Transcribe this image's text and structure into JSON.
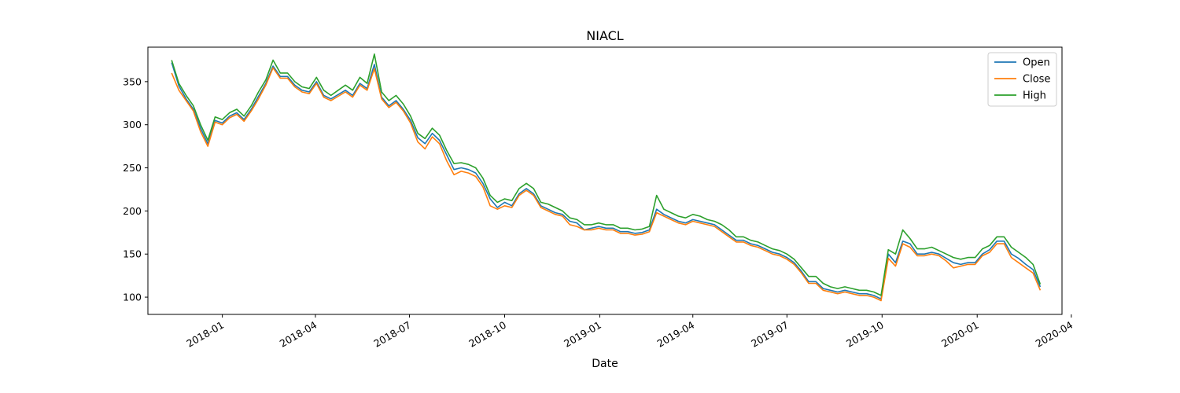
{
  "chart_data": {
    "type": "line",
    "title": "NIACL",
    "xlabel": "Date",
    "ylabel": "",
    "ylim": [
      80,
      390
    ],
    "xlim": [
      "2017-10-21",
      "2020-03-23"
    ],
    "x_ticks": [
      "2018-01",
      "2018-04",
      "2018-07",
      "2018-10",
      "2019-01",
      "2019-04",
      "2019-07",
      "2019-10",
      "2020-01",
      "2020-04"
    ],
    "y_ticks": [
      100,
      150,
      200,
      250,
      300,
      350
    ],
    "grid": false,
    "legend_position": "top-right",
    "x": [
      "2017-11-13",
      "2017-11-20",
      "2017-11-27",
      "2017-12-04",
      "2017-12-11",
      "2017-12-18",
      "2017-12-25",
      "2018-01-01",
      "2018-01-08",
      "2018-01-15",
      "2018-01-22",
      "2018-01-29",
      "2018-02-05",
      "2018-02-12",
      "2018-02-19",
      "2018-02-26",
      "2018-03-05",
      "2018-03-12",
      "2018-03-19",
      "2018-03-26",
      "2018-04-02",
      "2018-04-09",
      "2018-04-16",
      "2018-04-23",
      "2018-04-30",
      "2018-05-07",
      "2018-05-14",
      "2018-05-21",
      "2018-05-28",
      "2018-06-04",
      "2018-06-11",
      "2018-06-18",
      "2018-06-25",
      "2018-07-02",
      "2018-07-09",
      "2018-07-16",
      "2018-07-23",
      "2018-07-30",
      "2018-08-06",
      "2018-08-13",
      "2018-08-20",
      "2018-08-27",
      "2018-09-03",
      "2018-09-10",
      "2018-09-17",
      "2018-09-24",
      "2018-10-01",
      "2018-10-08",
      "2018-10-15",
      "2018-10-22",
      "2018-10-29",
      "2018-11-05",
      "2018-11-12",
      "2018-11-19",
      "2018-11-26",
      "2018-12-03",
      "2018-12-10",
      "2018-12-17",
      "2018-12-24",
      "2018-12-31",
      "2019-01-07",
      "2019-01-14",
      "2019-01-21",
      "2019-01-28",
      "2019-02-04",
      "2019-02-11",
      "2019-02-18",
      "2019-02-25",
      "2019-03-04",
      "2019-03-11",
      "2019-03-18",
      "2019-03-25",
      "2019-04-01",
      "2019-04-08",
      "2019-04-15",
      "2019-04-22",
      "2019-04-29",
      "2019-05-06",
      "2019-05-13",
      "2019-05-20",
      "2019-05-27",
      "2019-06-03",
      "2019-06-10",
      "2019-06-17",
      "2019-06-24",
      "2019-07-01",
      "2019-07-08",
      "2019-07-15",
      "2019-07-22",
      "2019-07-29",
      "2019-08-05",
      "2019-08-12",
      "2019-08-19",
      "2019-08-26",
      "2019-09-02",
      "2019-09-09",
      "2019-09-16",
      "2019-09-23",
      "2019-09-30",
      "2019-10-07",
      "2019-10-14",
      "2019-10-21",
      "2019-10-28",
      "2019-11-04",
      "2019-11-11",
      "2019-11-18",
      "2019-11-25",
      "2019-12-02",
      "2019-12-09",
      "2019-12-16",
      "2019-12-23",
      "2019-12-30",
      "2020-01-06",
      "2020-01-13",
      "2020-01-20",
      "2020-01-27",
      "2020-02-03",
      "2020-02-10",
      "2020-02-17",
      "2020-02-24",
      "2020-03-02"
    ],
    "series": [
      {
        "name": "Open",
        "color": "#1f77b4",
        "values": [
          372,
          345,
          330,
          318,
          296,
          278,
          305,
          302,
          310,
          314,
          306,
          318,
          333,
          348,
          368,
          356,
          356,
          346,
          340,
          338,
          350,
          334,
          330,
          335,
          340,
          334,
          348,
          342,
          370,
          332,
          322,
          328,
          318,
          305,
          285,
          278,
          290,
          282,
          265,
          248,
          250,
          248,
          244,
          232,
          214,
          204,
          210,
          206,
          220,
          226,
          220,
          206,
          202,
          198,
          196,
          188,
          186,
          178,
          180,
          182,
          180,
          180,
          176,
          176,
          174,
          175,
          178,
          202,
          196,
          192,
          188,
          186,
          190,
          188,
          186,
          184,
          178,
          172,
          166,
          166,
          162,
          160,
          156,
          152,
          150,
          146,
          140,
          130,
          118,
          118,
          110,
          108,
          106,
          108,
          106,
          104,
          104,
          102,
          98,
          150,
          140,
          165,
          162,
          150,
          150,
          152,
          150,
          145,
          140,
          138,
          140,
          140,
          150,
          155,
          165,
          165,
          150,
          145,
          138,
          132,
          112
        ]
      },
      {
        "name": "Close",
        "color": "#ff7f0e",
        "values": [
          360,
          340,
          328,
          316,
          292,
          275,
          303,
          300,
          308,
          312,
          304,
          316,
          330,
          346,
          366,
          354,
          354,
          344,
          338,
          336,
          348,
          332,
          328,
          333,
          338,
          332,
          346,
          340,
          365,
          330,
          320,
          326,
          316,
          302,
          280,
          272,
          286,
          278,
          258,
          242,
          246,
          244,
          240,
          228,
          206,
          202,
          206,
          204,
          218,
          224,
          218,
          204,
          200,
          196,
          194,
          184,
          182,
          178,
          178,
          180,
          178,
          178,
          174,
          174,
          172,
          173,
          176,
          198,
          194,
          190,
          186,
          184,
          188,
          186,
          184,
          182,
          176,
          170,
          164,
          164,
          160,
          158,
          154,
          150,
          148,
          144,
          138,
          128,
          116,
          116,
          108,
          106,
          104,
          106,
          104,
          102,
          102,
          100,
          96,
          145,
          136,
          162,
          158,
          148,
          148,
          150,
          148,
          142,
          134,
          136,
          138,
          138,
          148,
          152,
          162,
          162,
          146,
          140,
          134,
          128,
          108
        ]
      },
      {
        "name": "High",
        "color": "#2ca02c",
        "values": [
          375,
          348,
          334,
          322,
          300,
          282,
          309,
          306,
          314,
          318,
          310,
          322,
          338,
          352,
          375,
          360,
          360,
          350,
          344,
          342,
          355,
          340,
          334,
          340,
          346,
          340,
          355,
          348,
          382,
          338,
          328,
          334,
          324,
          310,
          290,
          284,
          296,
          288,
          270,
          255,
          256,
          254,
          250,
          238,
          218,
          210,
          214,
          212,
          226,
          232,
          226,
          210,
          208,
          204,
          200,
          192,
          190,
          184,
          184,
          186,
          184,
          184,
          180,
          180,
          178,
          179,
          182,
          218,
          202,
          198,
          194,
          192,
          196,
          194,
          190,
          188,
          184,
          178,
          170,
          170,
          166,
          164,
          160,
          156,
          154,
          150,
          144,
          134,
          124,
          124,
          116,
          112,
          110,
          112,
          110,
          108,
          108,
          106,
          102,
          155,
          150,
          178,
          168,
          156,
          156,
          158,
          154,
          150,
          146,
          144,
          146,
          146,
          156,
          160,
          170,
          170,
          158,
          152,
          146,
          138,
          115
        ]
      }
    ]
  }
}
